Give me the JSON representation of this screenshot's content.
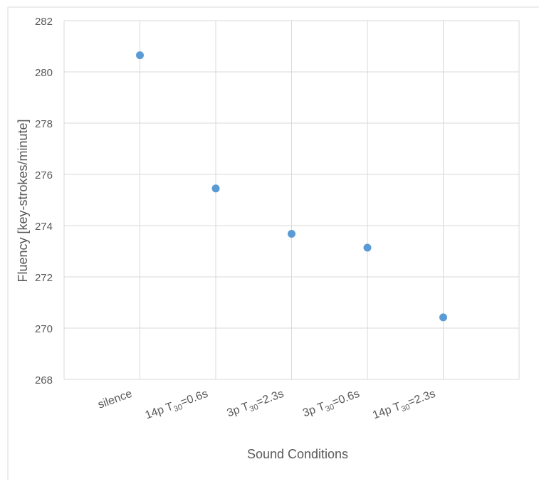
{
  "chart_data": {
    "type": "scatter",
    "title": "",
    "xlabel": "Sound Conditions",
    "ylabel": "Fluency [key-strokes/minute]",
    "ylim": [
      268,
      282
    ],
    "yticks": [
      "268",
      "270",
      "272",
      "274",
      "276",
      "278",
      "280",
      "282"
    ],
    "grid": true,
    "categories": [
      {
        "pre": "silence",
        "sub": "",
        "post": ""
      },
      {
        "pre": "14p T",
        "sub": "30",
        "post": "=0.6s"
      },
      {
        "pre": "3p T",
        "sub": "30",
        "post": "=2.3s"
      },
      {
        "pre": "3p T",
        "sub": "30",
        "post": "=0.6s"
      },
      {
        "pre": "14p T",
        "sub": "30",
        "post": "=2.3s"
      }
    ],
    "values": [
      280.65,
      275.45,
      273.68,
      273.14,
      270.42
    ],
    "point_color": "#5b9bd5",
    "grid_color": "#d9d9d9"
  }
}
